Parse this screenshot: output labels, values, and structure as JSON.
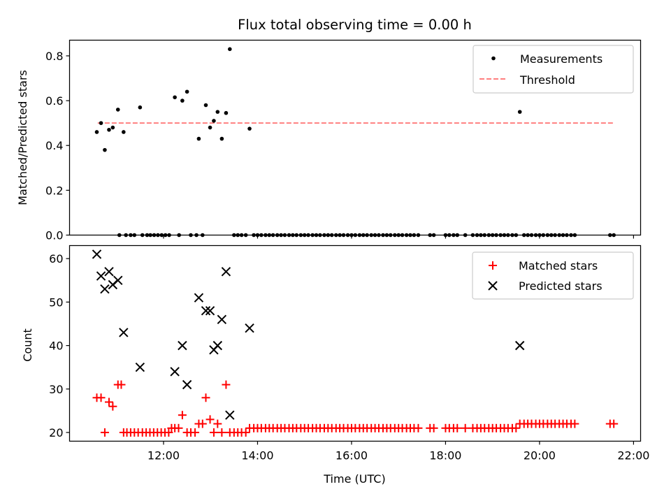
{
  "chart_data": [
    {
      "type": "scatter",
      "title": "Flux total observing time = 0.00 h",
      "xlabel": "",
      "ylabel": "Matched/Predicted stars",
      "ylim": [
        0,
        0.87
      ],
      "yticks": [
        "0.0",
        "0.2",
        "0.4",
        "0.6",
        "0.8"
      ],
      "ytick_values": [
        0.0,
        0.2,
        0.4,
        0.6,
        0.8
      ],
      "xlim_hours": [
        10.0,
        22.15
      ],
      "x_unit": "hours UTC",
      "grid": false,
      "legend_position": "upper right",
      "threshold": {
        "name": "Threshold",
        "value": 0.5,
        "x_from": 10.6,
        "x_to": 21.58,
        "color": "#ff7f7f",
        "style": "dashed"
      },
      "series": [
        {
          "name": "Measurements",
          "color": "#000000",
          "marker": "dot",
          "points": [
            [
              10.58,
              0.46
            ],
            [
              10.67,
              0.5
            ],
            [
              10.75,
              0.38
            ],
            [
              10.84,
              0.47
            ],
            [
              10.92,
              0.48
            ],
            [
              11.03,
              0.56
            ],
            [
              11.15,
              0.46
            ],
            [
              11.5,
              0.57
            ],
            [
              12.24,
              0.615
            ],
            [
              12.4,
              0.6
            ],
            [
              12.5,
              0.64
            ],
            [
              12.75,
              0.43
            ],
            [
              12.9,
              0.58
            ],
            [
              12.99,
              0.48
            ],
            [
              13.07,
              0.51
            ],
            [
              13.15,
              0.55
            ],
            [
              13.24,
              0.43
            ],
            [
              13.33,
              0.545
            ],
            [
              13.41,
              0.83
            ],
            [
              13.83,
              0.475
            ],
            [
              19.58,
              0.55
            ],
            [
              11.06,
              0
            ],
            [
              11.2,
              0
            ],
            [
              11.3,
              0
            ],
            [
              11.38,
              0
            ],
            [
              11.55,
              0
            ],
            [
              11.65,
              0
            ],
            [
              11.72,
              0
            ],
            [
              11.8,
              0
            ],
            [
              11.88,
              0
            ],
            [
              11.96,
              0
            ],
            [
              12.04,
              0
            ],
            [
              12.12,
              0
            ],
            [
              12.33,
              0
            ],
            [
              12.58,
              0
            ],
            [
              12.7,
              0
            ],
            [
              12.83,
              0
            ],
            [
              13.5,
              0
            ],
            [
              13.58,
              0
            ],
            [
              13.66,
              0
            ],
            [
              13.75,
              0
            ],
            [
              13.92,
              0
            ],
            [
              14.0,
              0
            ],
            [
              14.08,
              0
            ],
            [
              14.17,
              0
            ],
            [
              14.25,
              0
            ],
            [
              14.33,
              0
            ],
            [
              14.42,
              0
            ],
            [
              14.5,
              0
            ],
            [
              14.58,
              0
            ],
            [
              14.67,
              0
            ],
            [
              14.75,
              0
            ],
            [
              14.83,
              0
            ],
            [
              14.92,
              0
            ],
            [
              15.0,
              0
            ],
            [
              15.08,
              0
            ],
            [
              15.17,
              0
            ],
            [
              15.25,
              0
            ],
            [
              15.33,
              0
            ],
            [
              15.42,
              0
            ],
            [
              15.5,
              0
            ],
            [
              15.58,
              0
            ],
            [
              15.67,
              0
            ],
            [
              15.75,
              0
            ],
            [
              15.83,
              0
            ],
            [
              15.92,
              0
            ],
            [
              16.0,
              0
            ],
            [
              16.08,
              0
            ],
            [
              16.17,
              0
            ],
            [
              16.25,
              0
            ],
            [
              16.33,
              0
            ],
            [
              16.42,
              0
            ],
            [
              16.5,
              0
            ],
            [
              16.58,
              0
            ],
            [
              16.67,
              0
            ],
            [
              16.75,
              0
            ],
            [
              16.83,
              0
            ],
            [
              16.92,
              0
            ],
            [
              17.0,
              0
            ],
            [
              17.08,
              0
            ],
            [
              17.17,
              0
            ],
            [
              17.25,
              0
            ],
            [
              17.33,
              0
            ],
            [
              17.42,
              0
            ],
            [
              17.67,
              0
            ],
            [
              17.75,
              0
            ],
            [
              18.0,
              0
            ],
            [
              18.08,
              0
            ],
            [
              18.17,
              0
            ],
            [
              18.25,
              0
            ],
            [
              18.42,
              0
            ],
            [
              18.58,
              0
            ],
            [
              18.67,
              0
            ],
            [
              18.75,
              0
            ],
            [
              18.83,
              0
            ],
            [
              18.92,
              0
            ],
            [
              19.0,
              0
            ],
            [
              19.08,
              0
            ],
            [
              19.17,
              0
            ],
            [
              19.25,
              0
            ],
            [
              19.33,
              0
            ],
            [
              19.42,
              0
            ],
            [
              19.5,
              0
            ],
            [
              19.67,
              0
            ],
            [
              19.75,
              0
            ],
            [
              19.83,
              0
            ],
            [
              19.92,
              0
            ],
            [
              20.0,
              0
            ],
            [
              20.08,
              0
            ],
            [
              20.17,
              0
            ],
            [
              20.25,
              0
            ],
            [
              20.33,
              0
            ],
            [
              20.42,
              0
            ],
            [
              20.5,
              0
            ],
            [
              20.58,
              0
            ],
            [
              20.67,
              0
            ],
            [
              20.75,
              0
            ],
            [
              21.5,
              0
            ],
            [
              21.58,
              0
            ]
          ]
        }
      ]
    },
    {
      "type": "scatter",
      "title": "",
      "xlabel": "Time (UTC)",
      "ylabel": "Count",
      "ylim": [
        18,
        63
      ],
      "yticks": [
        "20",
        "30",
        "40",
        "50",
        "60"
      ],
      "ytick_values": [
        20,
        30,
        40,
        50,
        60
      ],
      "xlim_hours": [
        10.0,
        22.15
      ],
      "xticks": [
        "12:00",
        "14:00",
        "16:00",
        "18:00",
        "20:00",
        "22:00"
      ],
      "xtick_values": [
        12,
        14,
        16,
        18,
        20,
        22
      ],
      "grid": false,
      "legend_position": "upper right",
      "series": [
        {
          "name": "Matched stars",
          "color": "#ff0000",
          "marker": "plus",
          "points": [
            [
              10.58,
              28
            ],
            [
              10.67,
              28
            ],
            [
              10.75,
              20
            ],
            [
              10.84,
              27
            ],
            [
              10.92,
              26
            ],
            [
              11.03,
              31
            ],
            [
              11.1,
              31
            ],
            [
              11.15,
              20
            ],
            [
              11.22,
              20
            ],
            [
              11.3,
              20
            ],
            [
              11.38,
              20
            ],
            [
              11.46,
              20
            ],
            [
              11.55,
              20
            ],
            [
              11.63,
              20
            ],
            [
              11.71,
              20
            ],
            [
              11.79,
              20
            ],
            [
              11.87,
              20
            ],
            [
              11.95,
              20
            ],
            [
              12.03,
              20
            ],
            [
              12.11,
              20
            ],
            [
              12.17,
              21
            ],
            [
              12.24,
              21
            ],
            [
              12.32,
              21
            ],
            [
              12.4,
              24
            ],
            [
              12.5,
              20
            ],
            [
              12.58,
              20
            ],
            [
              12.67,
              20
            ],
            [
              12.75,
              22
            ],
            [
              12.83,
              22
            ],
            [
              12.9,
              28
            ],
            [
              12.99,
              23
            ],
            [
              13.07,
              20
            ],
            [
              13.15,
              22
            ],
            [
              13.24,
              20
            ],
            [
              13.33,
              31
            ],
            [
              13.41,
              20
            ],
            [
              13.5,
              20
            ],
            [
              13.58,
              20
            ],
            [
              13.66,
              20
            ],
            [
              13.75,
              20
            ],
            [
              13.83,
              21
            ],
            [
              13.92,
              21
            ],
            [
              14.0,
              21
            ],
            [
              14.08,
              21
            ],
            [
              14.17,
              21
            ],
            [
              14.25,
              21
            ],
            [
              14.33,
              21
            ],
            [
              14.42,
              21
            ],
            [
              14.5,
              21
            ],
            [
              14.58,
              21
            ],
            [
              14.67,
              21
            ],
            [
              14.75,
              21
            ],
            [
              14.83,
              21
            ],
            [
              14.92,
              21
            ],
            [
              15.0,
              21
            ],
            [
              15.08,
              21
            ],
            [
              15.17,
              21
            ],
            [
              15.25,
              21
            ],
            [
              15.33,
              21
            ],
            [
              15.42,
              21
            ],
            [
              15.5,
              21
            ],
            [
              15.58,
              21
            ],
            [
              15.67,
              21
            ],
            [
              15.75,
              21
            ],
            [
              15.83,
              21
            ],
            [
              15.92,
              21
            ],
            [
              16.0,
              21
            ],
            [
              16.08,
              21
            ],
            [
              16.17,
              21
            ],
            [
              16.25,
              21
            ],
            [
              16.33,
              21
            ],
            [
              16.42,
              21
            ],
            [
              16.5,
              21
            ],
            [
              16.58,
              21
            ],
            [
              16.67,
              21
            ],
            [
              16.75,
              21
            ],
            [
              16.83,
              21
            ],
            [
              16.92,
              21
            ],
            [
              17.0,
              21
            ],
            [
              17.08,
              21
            ],
            [
              17.17,
              21
            ],
            [
              17.25,
              21
            ],
            [
              17.33,
              21
            ],
            [
              17.42,
              21
            ],
            [
              17.67,
              21
            ],
            [
              17.75,
              21
            ],
            [
              18.0,
              21
            ],
            [
              18.08,
              21
            ],
            [
              18.17,
              21
            ],
            [
              18.25,
              21
            ],
            [
              18.42,
              21
            ],
            [
              18.58,
              21
            ],
            [
              18.67,
              21
            ],
            [
              18.75,
              21
            ],
            [
              18.83,
              21
            ],
            [
              18.92,
              21
            ],
            [
              19.0,
              21
            ],
            [
              19.08,
              21
            ],
            [
              19.17,
              21
            ],
            [
              19.25,
              21
            ],
            [
              19.33,
              21
            ],
            [
              19.42,
              21
            ],
            [
              19.5,
              21
            ],
            [
              19.58,
              22
            ],
            [
              19.67,
              22
            ],
            [
              19.75,
              22
            ],
            [
              19.83,
              22
            ],
            [
              19.92,
              22
            ],
            [
              20.0,
              22
            ],
            [
              20.08,
              22
            ],
            [
              20.17,
              22
            ],
            [
              20.25,
              22
            ],
            [
              20.33,
              22
            ],
            [
              20.42,
              22
            ],
            [
              20.5,
              22
            ],
            [
              20.58,
              22
            ],
            [
              20.67,
              22
            ],
            [
              20.75,
              22
            ],
            [
              21.5,
              22
            ],
            [
              21.58,
              22
            ]
          ]
        },
        {
          "name": "Predicted stars",
          "color": "#000000",
          "marker": "x",
          "points": [
            [
              10.58,
              61
            ],
            [
              10.67,
              56
            ],
            [
              10.75,
              53
            ],
            [
              10.84,
              57
            ],
            [
              10.92,
              54
            ],
            [
              11.03,
              55
            ],
            [
              11.15,
              43
            ],
            [
              11.5,
              35
            ],
            [
              12.24,
              34
            ],
            [
              12.4,
              40
            ],
            [
              12.5,
              31
            ],
            [
              12.75,
              51
            ],
            [
              12.9,
              48
            ],
            [
              12.99,
              48
            ],
            [
              13.07,
              39
            ],
            [
              13.15,
              40
            ],
            [
              13.24,
              46
            ],
            [
              13.33,
              57
            ],
            [
              13.41,
              24
            ],
            [
              13.83,
              44
            ],
            [
              19.58,
              40
            ]
          ]
        }
      ]
    }
  ]
}
